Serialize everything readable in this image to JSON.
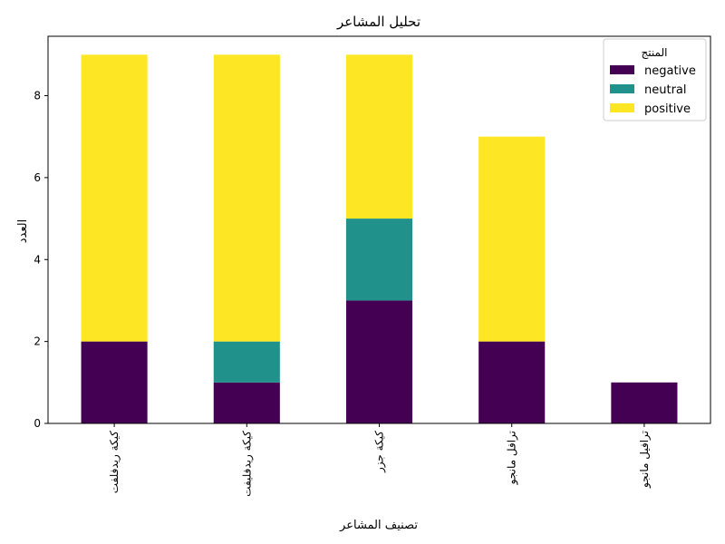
{
  "chart_data": {
    "type": "bar",
    "stacked": true,
    "title": "تحليل المشاعر",
    "xlabel": "تصنيف المشاعر",
    "ylabel": "العدد",
    "categories": [
      "كيكة ريدفلفت",
      "كيكة ريدفليفت",
      "كيكة جزر",
      "ترافل مانجو",
      "ترافيل مانجو"
    ],
    "series": [
      {
        "name": "negative",
        "color": "#440154",
        "values": [
          2,
          1,
          3,
          2,
          1
        ]
      },
      {
        "name": "neutral",
        "color": "#21918c",
        "values": [
          0,
          1,
          2,
          0,
          0
        ]
      },
      {
        "name": "positive",
        "color": "#fde725",
        "values": [
          7,
          7,
          4,
          5,
          0
        ]
      }
    ],
    "ylim": [
      0,
      9.45
    ],
    "yticks": [
      0,
      2,
      4,
      6,
      8
    ],
    "grid": false,
    "legend": {
      "title": "المنتج",
      "placement": "top-right"
    }
  }
}
